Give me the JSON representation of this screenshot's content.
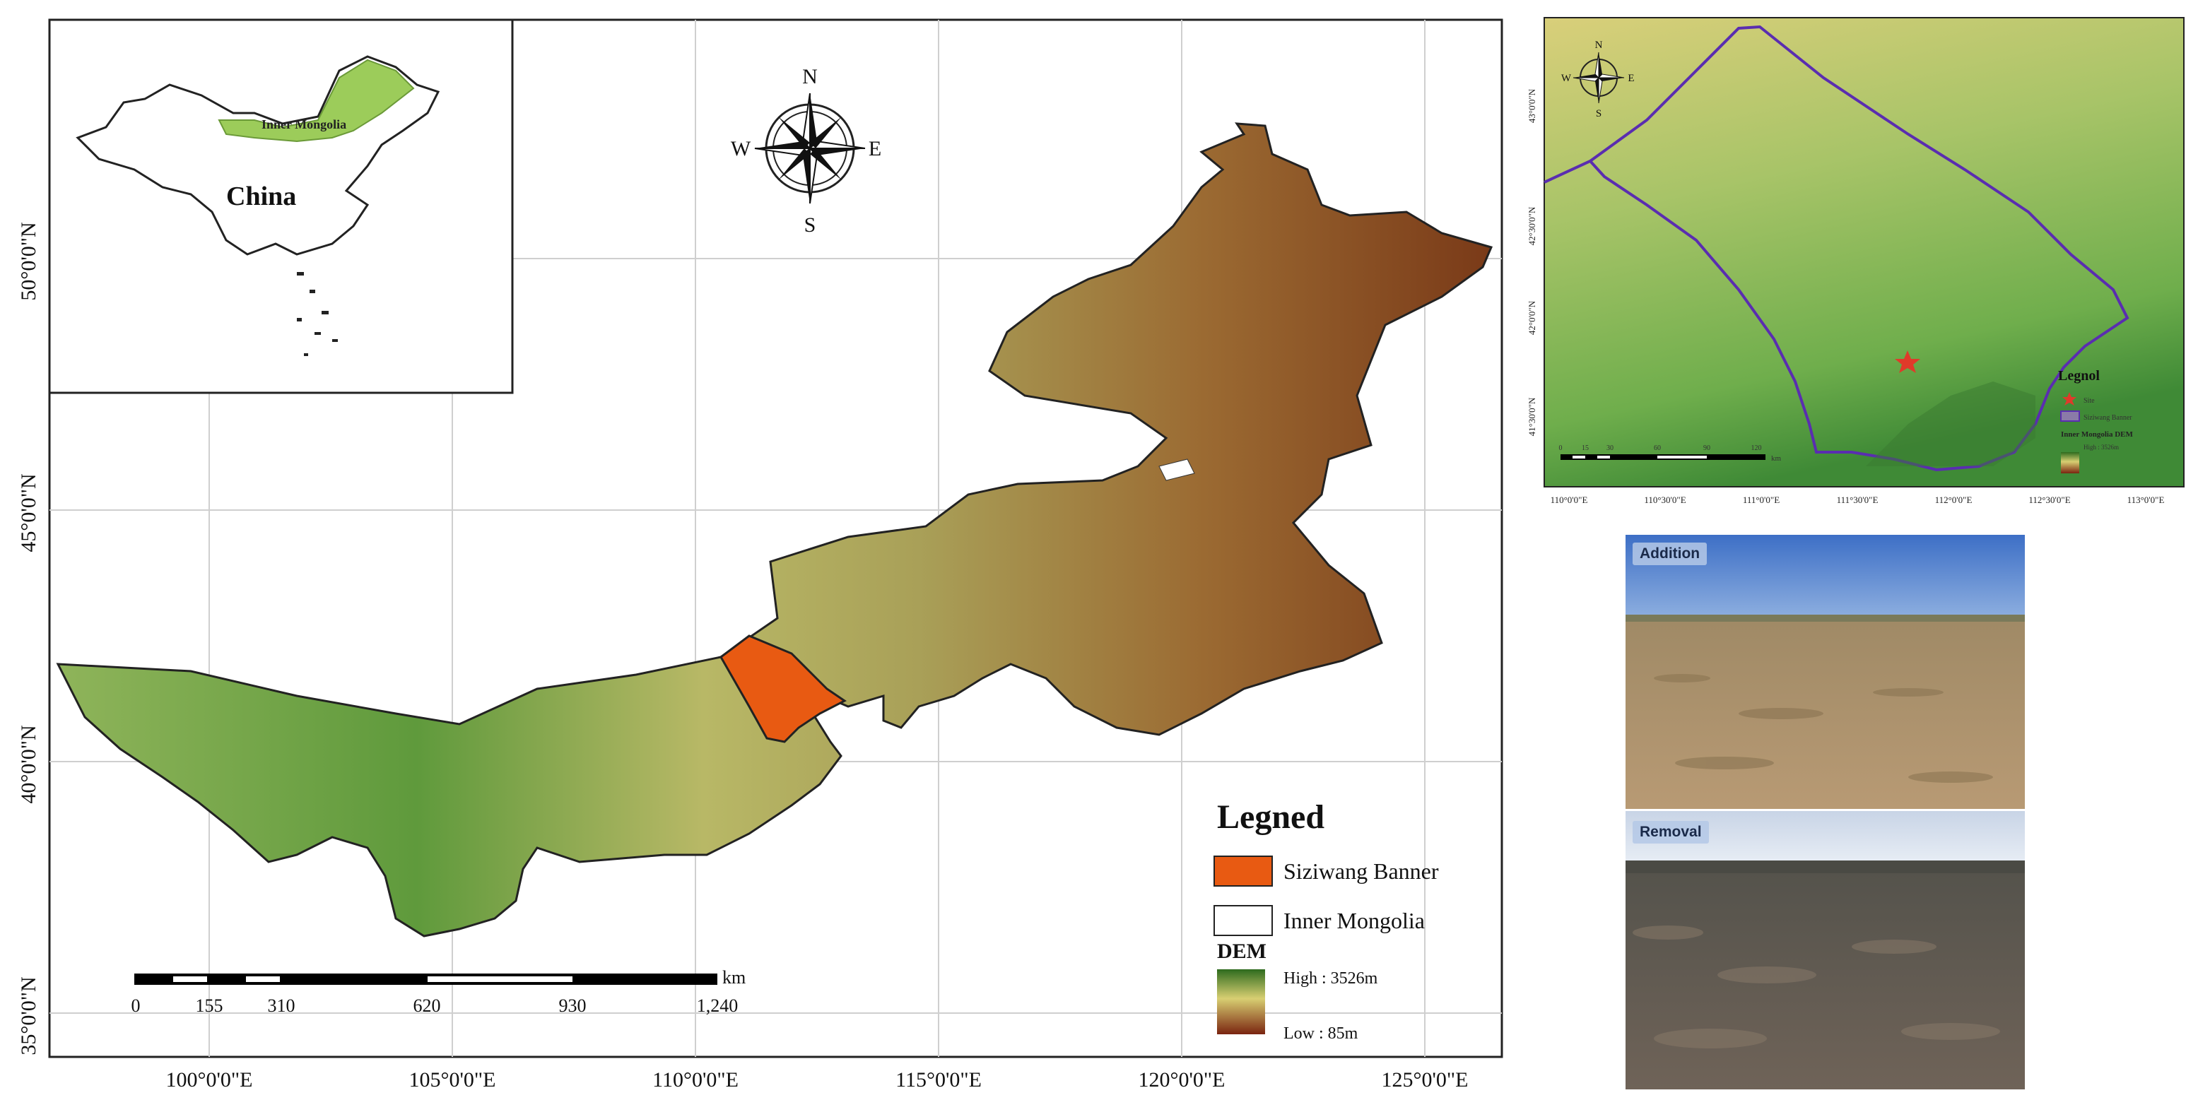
{
  "main_map": {
    "lat_labels": [
      "50°0'0\"N",
      "45°0'0\"N",
      "40°0'0\"N",
      "35°0'0\"N"
    ],
    "lon_labels": [
      "100°0'0\"E",
      "105°0'0\"E",
      "110°0'0\"E",
      "115°0'0\"E",
      "120°0'0\"E",
      "125°0'0\"E"
    ],
    "compass": {
      "n": "N",
      "s": "S",
      "e": "E",
      "w": "W"
    },
    "inset": {
      "country_label": "China",
      "region_label": "Inner Mongolia"
    },
    "scale_bar": {
      "unit": "km",
      "ticks": [
        "0",
        "155",
        "310",
        "620",
        "930",
        "1,240"
      ]
    },
    "legend": {
      "title": "Legned",
      "study_area": "Siziwang Banner",
      "region": "Inner Mongolia",
      "dem_title": "DEM",
      "dem_high": "High : 3526m",
      "dem_low": "Low : 85m"
    },
    "colors": {
      "study_area": "#e85a12",
      "dem_high": "#2e6b1e",
      "dem_mid": "#d8cf72",
      "dem_low": "#7a2410"
    }
  },
  "detail_map": {
    "lat_labels": [
      "43°0'0\"N",
      "42°30'0\"N",
      "42°0'0\"N",
      "41°30'0\"N"
    ],
    "lon_labels": [
      "110°0'0\"E",
      "110°30'0\"E",
      "111°0'0\"E",
      "111°30'0\"E",
      "112°0'0\"E",
      "112°30'0\"E",
      "113°0'0\"E"
    ],
    "compass": {
      "n": "N",
      "s": "S",
      "e": "E",
      "w": "W"
    },
    "legend": {
      "title": "Legnol",
      "site": "Site",
      "boundary": "Siziwang Banner",
      "dem": "Inner Mongolia DEM",
      "dem_range": "High : 3526m"
    },
    "scale_ticks": [
      "0",
      "15",
      "30",
      "60",
      "90",
      "120"
    ],
    "scale_unit": "km",
    "colors": {
      "boundary": "#5a2db0",
      "site": "#e03a2a"
    }
  },
  "photos": [
    {
      "label": "Addition"
    },
    {
      "label": "Removal"
    }
  ]
}
